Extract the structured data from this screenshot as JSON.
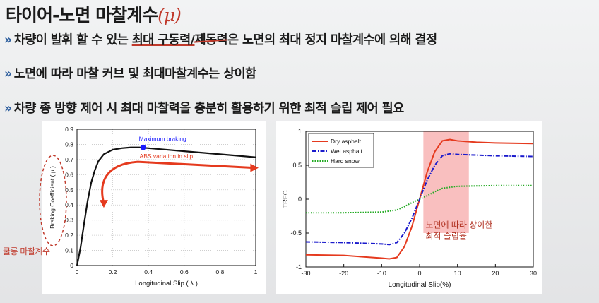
{
  "slide": {
    "title_main": "타이어-노면 마찰계수",
    "title_symbol": "(μ)",
    "bullets": [
      {
        "pre": "차량이 발휘 할 수 있는 ",
        "underlined": "최대 구동력/",
        "struck": "제동력",
        "post": "은 노면의 최대 정지 마찰계수에 의해 결정"
      },
      {
        "text": "노면에 따라 마찰 커브 및 최대마찰계수는 상이함"
      },
      {
        "text": "차량 종 방향 제어 시 최대 마찰력을 충분히 활용하기 위한 최적 슬립 제어 필요"
      }
    ],
    "chevron": "»",
    "side_note": "쿨롱 마찰계수",
    "accent_color": "#c0392b",
    "bullet_color": "#2f5f9e"
  },
  "chart_data": [
    {
      "type": "line",
      "title": "",
      "xlabel": "Longitudinal Slip ( λ )",
      "ylabel": "Braking Coefficient ( μ )",
      "xlim": [
        0,
        1
      ],
      "ylim": [
        0,
        0.9
      ],
      "x_ticks": [
        "0",
        "0.2",
        "0.4",
        "0.6",
        "0.8",
        "1"
      ],
      "y_ticks": [
        "0",
        "0.1",
        "0.2",
        "0.3",
        "0.4",
        "0.5",
        "0.6",
        "0.7",
        "0.8",
        "0.9"
      ],
      "grid": true,
      "series": [
        {
          "color": "#111111",
          "x": [
            0,
            0.02,
            0.04,
            0.06,
            0.08,
            0.1,
            0.12,
            0.15,
            0.2,
            0.25,
            0.3,
            0.35,
            0.4,
            0.5,
            0.6,
            0.7,
            0.8,
            0.9,
            1.0
          ],
          "y": [
            0,
            0.12,
            0.28,
            0.43,
            0.55,
            0.63,
            0.69,
            0.735,
            0.765,
            0.775,
            0.78,
            0.78,
            0.775,
            0.765,
            0.755,
            0.745,
            0.735,
            0.725,
            0.715
          ]
        }
      ],
      "annotations": [
        {
          "text": "Maximum braking",
          "x": 0.37,
          "y": 0.78,
          "color": "#1a1aff"
        },
        {
          "text": "ABS variation in slip",
          "x": 0.35,
          "y": 0.69,
          "color": "#e53a1e"
        }
      ]
    },
    {
      "type": "line",
      "title": "",
      "xlabel": "Longitudinal Slip(%)",
      "ylabel": "TRFC",
      "xlim": [
        -30,
        30
      ],
      "ylim": [
        -1,
        1
      ],
      "x_ticks": [
        "-30",
        "-20",
        "-10",
        "0",
        "10",
        "20",
        "30"
      ],
      "y_ticks": [
        "-1",
        "-0.5",
        "0",
        "0.5",
        "1"
      ],
      "grid": false,
      "legend_position": "top-left",
      "highlight": {
        "x_from": 1,
        "x_to": 13,
        "color": "#f8b4b4",
        "label": [
          "노면에 따라 상이한",
          "최적 슬립율"
        ]
      },
      "series": [
        {
          "name": "Dry asphalt",
          "color": "#e53a1e",
          "style": "solid",
          "x": [
            -30,
            -20,
            -10,
            -8,
            -6,
            -4,
            -2,
            0,
            2,
            4,
            6,
            8,
            10,
            15,
            20,
            30
          ],
          "y": [
            -0.82,
            -0.83,
            -0.87,
            -0.88,
            -0.86,
            -0.7,
            -0.4,
            0,
            0.4,
            0.7,
            0.86,
            0.88,
            0.86,
            0.84,
            0.83,
            0.82
          ]
        },
        {
          "name": "Wet asphalt",
          "color": "#1a1acc",
          "style": "dashdot",
          "x": [
            -30,
            -20,
            -10,
            -8,
            -6,
            -4,
            -2,
            0,
            2,
            4,
            6,
            8,
            10,
            15,
            20,
            30
          ],
          "y": [
            -0.63,
            -0.64,
            -0.66,
            -0.67,
            -0.64,
            -0.5,
            -0.28,
            0,
            0.28,
            0.5,
            0.64,
            0.67,
            0.66,
            0.65,
            0.64,
            0.63
          ]
        },
        {
          "name": "Hard snow",
          "color": "#22aa22",
          "style": "dotted",
          "x": [
            -30,
            -20,
            -10,
            -6,
            -4,
            -2,
            0,
            2,
            4,
            6,
            10,
            20,
            30
          ],
          "y": [
            -0.2,
            -0.2,
            -0.19,
            -0.16,
            -0.11,
            -0.05,
            0,
            0.05,
            0.11,
            0.16,
            0.19,
            0.2,
            0.2
          ]
        }
      ]
    }
  ]
}
